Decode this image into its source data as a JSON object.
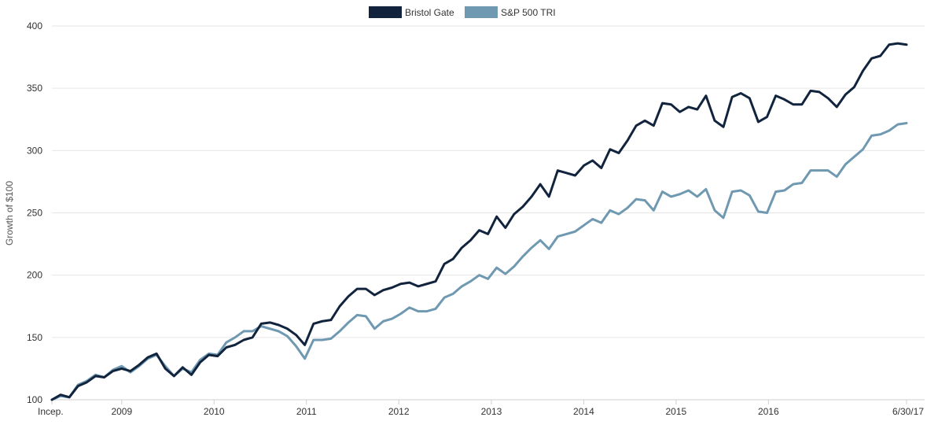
{
  "chart_data": {
    "type": "line",
    "title": "",
    "xlabel": "",
    "ylabel": "Growth of $100",
    "ylim": [
      100,
      400
    ],
    "y_ticks": [
      100,
      150,
      200,
      250,
      300,
      350,
      400
    ],
    "grid": true,
    "legend_position": "top-center",
    "x_start": "2008-03-31",
    "x_end": "2017-06-30",
    "x_ticks": [
      {
        "date": "2008-03-31",
        "label": "Incep."
      },
      {
        "date": "2009-01-01",
        "label": "2009"
      },
      {
        "date": "2010-01-01",
        "label": "2010"
      },
      {
        "date": "2011-01-01",
        "label": "2011"
      },
      {
        "date": "2012-01-01",
        "label": "2012"
      },
      {
        "date": "2013-01-01",
        "label": "2013"
      },
      {
        "date": "2014-01-01",
        "label": "2014"
      },
      {
        "date": "2015-01-01",
        "label": "2015"
      },
      {
        "date": "2016-01-01",
        "label": "2016"
      },
      {
        "date": "2017-06-30",
        "label": "6/30/17"
      }
    ],
    "series": [
      {
        "name": "Bristol Gate",
        "color": "#12243d",
        "values": [
          100,
          104,
          102,
          111,
          114,
          119,
          118,
          123,
          125,
          123,
          128,
          134,
          137,
          125,
          119,
          126,
          120,
          130,
          136,
          135,
          142,
          144,
          148,
          150,
          161,
          162,
          160,
          157,
          152,
          144,
          161,
          163,
          164,
          175,
          183,
          189,
          189,
          184,
          188,
          190,
          193,
          194,
          191,
          193,
          195,
          209,
          213,
          222,
          228,
          236,
          233,
          247,
          238,
          249,
          255,
          263,
          273,
          263,
          284,
          282,
          280,
          288,
          292,
          286,
          301,
          298,
          308,
          320,
          324,
          320,
          338,
          337,
          331,
          335,
          333,
          344,
          324,
          319,
          343,
          346,
          342,
          323,
          327,
          344,
          341,
          337,
          337,
          348,
          347,
          342,
          335,
          345,
          351,
          364,
          374,
          376,
          385,
          386,
          385
        ]
      },
      {
        "name": "S&P 500 TRI",
        "color": "#6f98b1",
        "values": [
          100,
          103,
          102,
          112,
          115,
          120,
          118,
          124,
          127,
          122,
          127,
          133,
          136,
          127,
          119,
          125,
          122,
          132,
          137,
          136,
          146,
          150,
          155,
          155,
          159,
          157,
          155,
          151,
          143,
          133,
          148,
          148,
          149,
          155,
          162,
          168,
          167,
          157,
          163,
          165,
          169,
          174,
          171,
          171,
          173,
          182,
          185,
          191,
          195,
          200,
          197,
          206,
          201,
          207,
          215,
          222,
          228,
          221,
          231,
          233,
          235,
          240,
          245,
          242,
          252,
          249,
          254,
          261,
          260,
          252,
          267,
          263,
          265,
          268,
          263,
          269,
          252,
          246,
          267,
          268,
          264,
          251,
          250,
          267,
          268,
          273,
          274,
          284,
          284,
          284,
          279,
          289,
          295,
          301,
          312,
          313,
          316,
          321,
          322
        ]
      }
    ]
  }
}
